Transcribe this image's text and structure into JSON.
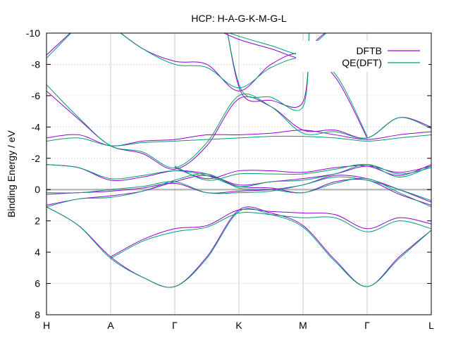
{
  "chart_data": {
    "type": "line",
    "title": "HCP: H-A-G-K-M-G-L",
    "ylabel": "Binding Energy / eV",
    "xlabel": "",
    "x_ticks": [
      "H",
      "A",
      "Γ",
      "K",
      "M",
      "Γ",
      "L"
    ],
    "y_ticks": [
      "-10",
      "-8",
      "-6",
      "-4",
      "-2",
      "0",
      "2",
      "4",
      "6",
      "8"
    ],
    "ylim": [
      8,
      -10
    ],
    "y_reversed": true,
    "grid": true,
    "legend_position": "top-right",
    "colors": {
      "DFTB": "#9400d3",
      "QE(DFT)": "#009e73",
      "fermi": "#bbbbbb",
      "grid": "#bbbbbb"
    },
    "series": [
      {
        "name": "DFTB",
        "color": "#9400d3",
        "bands": [
          [
            [
              0,
              1.0
            ],
            [
              0.5,
              0.6
            ],
            [
              1,
              0.4
            ],
            [
              1.5,
              0.1
            ],
            [
              2,
              -0.5
            ],
            [
              2.5,
              -0.9
            ],
            [
              3,
              -0.2
            ],
            [
              3.5,
              -0.1
            ],
            [
              4,
              0.2
            ],
            [
              4.5,
              -0.5
            ],
            [
              5,
              -0.6
            ],
            [
              5.5,
              0.3
            ],
            [
              6,
              1.0
            ]
          ],
          [
            [
              0,
              0.3
            ],
            [
              0.5,
              0.2
            ],
            [
              1,
              0.1
            ],
            [
              1.5,
              -0.1
            ],
            [
              2,
              -0.4
            ],
            [
              2.5,
              0.2
            ],
            [
              3,
              0.1
            ],
            [
              3.5,
              0.0
            ],
            [
              4,
              -0.3
            ],
            [
              4.5,
              -0.9
            ],
            [
              5,
              -0.7
            ],
            [
              5.5,
              0.0
            ],
            [
              6,
              0.8
            ]
          ],
          [
            [
              0,
              -1.6
            ],
            [
              0.5,
              -1.4
            ],
            [
              1,
              -0.6
            ],
            [
              1.5,
              -0.8
            ],
            [
              2,
              -1.2
            ],
            [
              2.5,
              -1.0
            ],
            [
              3,
              -0.3
            ],
            [
              3.5,
              -0.5
            ],
            [
              4,
              -0.7
            ],
            [
              4.5,
              -1.0
            ],
            [
              5,
              -1.5
            ],
            [
              5.5,
              -1.1
            ],
            [
              6,
              -1.5
            ]
          ],
          [
            [
              0,
              -3.3
            ],
            [
              0.5,
              -3.5
            ],
            [
              1,
              -2.8
            ],
            [
              1.5,
              -3.1
            ],
            [
              2,
              -3.2
            ],
            [
              2.5,
              -3.5
            ],
            [
              3,
              -3.5
            ],
            [
              3.5,
              -3.6
            ],
            [
              4,
              -3.8
            ],
            [
              4.5,
              -3.5
            ],
            [
              5,
              -3.2
            ],
            [
              5.5,
              -3.5
            ],
            [
              6,
              -3.7
            ]
          ],
          [
            [
              2,
              -1.4
            ],
            [
              2.5,
              -0.7
            ],
            [
              3,
              -1.2
            ],
            [
              3.5,
              -1.2
            ],
            [
              4,
              -1.1
            ],
            [
              4.5,
              -1.4
            ],
            [
              5,
              -1.5
            ],
            [
              5.5,
              -0.9
            ],
            [
              6,
              -1.6
            ]
          ],
          [
            [
              0,
              1.1
            ],
            [
              0.5,
              2.3
            ],
            [
              1,
              4.3
            ],
            [
              1.5,
              5.6
            ],
            [
              2,
              6.2
            ],
            [
              2.5,
              4.3
            ],
            [
              3,
              1.3
            ],
            [
              3.5,
              1.5
            ],
            [
              4,
              2.3
            ],
            [
              4.5,
              4.5
            ],
            [
              5,
              6.2
            ],
            [
              5.5,
              4.3
            ],
            [
              6,
              2.6
            ]
          ],
          [
            [
              1,
              4.3
            ],
            [
              1.5,
              3.2
            ],
            [
              2,
              2.5
            ],
            [
              2.5,
              2.3
            ],
            [
              3,
              1.3
            ],
            [
              3.5,
              1.4
            ],
            [
              4,
              1.5
            ],
            [
              4.5,
              1.6
            ],
            [
              5,
              2.5
            ],
            [
              5.5,
              1.8
            ],
            [
              6,
              2.2
            ]
          ],
          [
            [
              0,
              -6.3
            ],
            [
              0.5,
              -4.5
            ],
            [
              1,
              -2.8
            ],
            [
              1.5,
              -2.3
            ],
            [
              2,
              -1.3
            ],
            [
              2.5,
              -2.8
            ],
            [
              3,
              -5.8
            ],
            [
              3.5,
              -5.3
            ],
            [
              4,
              -3.8
            ],
            [
              4.5,
              -3.8
            ],
            [
              5,
              -3.3
            ],
            [
              5.5,
              -4.6
            ],
            [
              6,
              -4.0
            ]
          ],
          [
            [
              0,
              -8.6
            ],
            [
              0.5,
              -10.5
            ]
          ],
          [
            [
              1,
              -10.5
            ],
            [
              1.5,
              -9.0
            ],
            [
              2,
              -8.2
            ],
            [
              2.5,
              -8.0
            ],
            [
              3,
              -6.3
            ],
            [
              3.5,
              -8.0
            ],
            [
              4,
              -8.7
            ],
            [
              4.5,
              -7.2
            ],
            [
              5,
              -3.3
            ]
          ],
          [
            [
              2.5,
              -10.5
            ],
            [
              3,
              -9.6
            ],
            [
              3.5,
              -9.0
            ],
            [
              4,
              -8.4
            ],
            [
              4.2,
              -9.5
            ],
            [
              4.5,
              -10.5
            ]
          ],
          [
            [
              2.8,
              -10.5
            ],
            [
              3.05,
              -6.1
            ],
            [
              3.5,
              -5.7
            ],
            [
              4,
              -5.6
            ],
            [
              4.1,
              -10.5
            ]
          ]
        ]
      },
      {
        "name": "QE(DFT)",
        "color": "#009e73",
        "bands": [
          [
            [
              0,
              1.1
            ],
            [
              0.5,
              0.6
            ],
            [
              1,
              0.5
            ],
            [
              1.5,
              0.1
            ],
            [
              2,
              -0.6
            ],
            [
              2.5,
              -1.0
            ],
            [
              3,
              -0.1
            ],
            [
              3.5,
              0.0
            ],
            [
              4,
              0.2
            ],
            [
              4.5,
              -0.4
            ],
            [
              5,
              -0.7
            ],
            [
              5.5,
              0.2
            ],
            [
              6,
              1.1
            ]
          ],
          [
            [
              0,
              0.2
            ],
            [
              0.5,
              0.2
            ],
            [
              1,
              0.0
            ],
            [
              1.5,
              -0.2
            ],
            [
              2,
              -0.5
            ],
            [
              2.5,
              0.2
            ],
            [
              3,
              0.2
            ],
            [
              3.5,
              0.1
            ],
            [
              4,
              -0.3
            ],
            [
              4.5,
              -0.8
            ],
            [
              5,
              -0.6
            ],
            [
              5.5,
              0.0
            ],
            [
              6,
              0.7
            ]
          ],
          [
            [
              0,
              -1.6
            ],
            [
              0.5,
              -1.4
            ],
            [
              1,
              -0.7
            ],
            [
              1.5,
              -0.9
            ],
            [
              2,
              -1.2
            ],
            [
              2.5,
              -0.9
            ],
            [
              3,
              -0.2
            ],
            [
              3.5,
              -0.5
            ],
            [
              4,
              -0.6
            ],
            [
              4.5,
              -1.0
            ],
            [
              5,
              -1.6
            ],
            [
              5.5,
              -1.0
            ],
            [
              6,
              -1.4
            ]
          ],
          [
            [
              0,
              -3.1
            ],
            [
              0.5,
              -3.3
            ],
            [
              1,
              -2.8
            ],
            [
              1.5,
              -3.0
            ],
            [
              2,
              -3.1
            ],
            [
              2.5,
              -3.2
            ],
            [
              3,
              -3.3
            ],
            [
              3.5,
              -3.4
            ],
            [
              4,
              -3.4
            ],
            [
              4.5,
              -3.3
            ],
            [
              5,
              -3.1
            ],
            [
              5.5,
              -3.3
            ],
            [
              6,
              -3.5
            ]
          ],
          [
            [
              2,
              -1.5
            ],
            [
              2.5,
              -0.6
            ],
            [
              3,
              -1.0
            ],
            [
              3.5,
              -1.0
            ],
            [
              4,
              -1.0
            ],
            [
              4.5,
              -1.3
            ],
            [
              5,
              -1.6
            ],
            [
              5.5,
              -0.8
            ],
            [
              6,
              -1.5
            ]
          ],
          [
            [
              0,
              1.1
            ],
            [
              0.5,
              2.3
            ],
            [
              1,
              4.4
            ],
            [
              1.5,
              5.6
            ],
            [
              2,
              6.2
            ],
            [
              2.5,
              4.4
            ],
            [
              3,
              1.4
            ],
            [
              3.5,
              1.6
            ],
            [
              4,
              2.4
            ],
            [
              4.5,
              4.6
            ],
            [
              5,
              6.2
            ],
            [
              5.5,
              4.4
            ],
            [
              6,
              2.6
            ]
          ],
          [
            [
              1,
              4.4
            ],
            [
              1.5,
              3.3
            ],
            [
              2,
              2.7
            ],
            [
              2.5,
              2.4
            ],
            [
              3,
              1.5
            ],
            [
              3.5,
              1.6
            ],
            [
              4,
              1.8
            ],
            [
              4.5,
              1.8
            ],
            [
              5,
              2.7
            ],
            [
              5.5,
              2.0
            ],
            [
              6,
              2.5
            ]
          ],
          [
            [
              0,
              -6.7
            ],
            [
              0.5,
              -4.6
            ],
            [
              1,
              -2.8
            ],
            [
              1.5,
              -2.4
            ],
            [
              2,
              -1.4
            ],
            [
              2.5,
              -3.0
            ],
            [
              3,
              -6.0
            ],
            [
              3.5,
              -5.3
            ],
            [
              4,
              -3.6
            ],
            [
              4.5,
              -3.7
            ],
            [
              5,
              -3.3
            ],
            [
              5.5,
              -4.6
            ],
            [
              6,
              -3.9
            ]
          ],
          [
            [
              0,
              -8.4
            ],
            [
              0.5,
              -10.5
            ]
          ],
          [
            [
              1,
              -10.5
            ],
            [
              1.5,
              -9.0
            ],
            [
              2,
              -8.0
            ],
            [
              2.5,
              -7.8
            ],
            [
              3,
              -6.5
            ],
            [
              3.5,
              -7.8
            ],
            [
              4,
              -8.4
            ],
            [
              4.5,
              -7.4
            ],
            [
              5,
              -3.4
            ]
          ],
          [
            [
              2.5,
              -10.5
            ],
            [
              3,
              -9.8
            ],
            [
              3.5,
              -9.2
            ],
            [
              4,
              -8.6
            ],
            [
              4.2,
              -9.4
            ],
            [
              4.5,
              -10.5
            ]
          ],
          [
            [
              2.8,
              -10.5
            ],
            [
              3.05,
              -6.3
            ],
            [
              3.5,
              -5.9
            ],
            [
              4,
              -5.3
            ],
            [
              4.1,
              -10.5
            ]
          ]
        ]
      }
    ]
  }
}
